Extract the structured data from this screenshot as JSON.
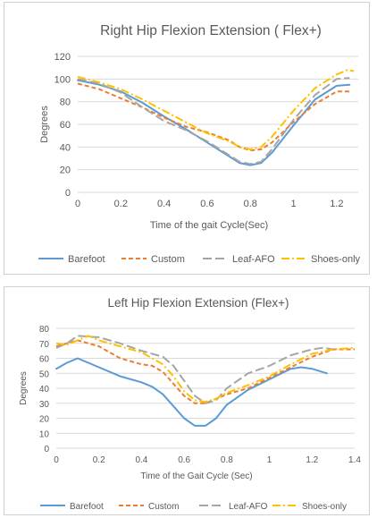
{
  "chart_data": [
    {
      "type": "line",
      "title": "Right Hip Flexion Extension ( Flex+)",
      "xlabel": "Time of the gait Cycle(Sec)",
      "ylabel": "Degrees",
      "xlim": [
        0,
        1.3
      ],
      "ylim": [
        0,
        120
      ],
      "xticks": [
        "0",
        "0.2",
        "0.4",
        "0.6",
        "0.8",
        "1",
        "1.2"
      ],
      "yticks": [
        "0",
        "20",
        "40",
        "60",
        "80",
        "100",
        "120"
      ],
      "grid": "horizontal",
      "legend": "bottom",
      "series": [
        {
          "name": "Barefoot",
          "color": "#5b9bd5",
          "dash": "solid",
          "points": [
            [
              0,
              99
            ],
            [
              0.1,
              95
            ],
            [
              0.2,
              89
            ],
            [
              0.3,
              79
            ],
            [
              0.4,
              67
            ],
            [
              0.5,
              56
            ],
            [
              0.6,
              44
            ],
            [
              0.7,
              32
            ],
            [
              0.75,
              26
            ],
            [
              0.8,
              24
            ],
            [
              0.85,
              26
            ],
            [
              0.9,
              35
            ],
            [
              1.0,
              59
            ],
            [
              1.1,
              82
            ],
            [
              1.2,
              94
            ],
            [
              1.26,
              95
            ]
          ]
        },
        {
          "name": "Custom",
          "color": "#ed7d31",
          "dash": "dash",
          "points": [
            [
              0,
              96
            ],
            [
              0.1,
              91
            ],
            [
              0.2,
              83
            ],
            [
              0.3,
              75
            ],
            [
              0.4,
              66
            ],
            [
              0.5,
              58
            ],
            [
              0.6,
              53
            ],
            [
              0.7,
              46
            ],
            [
              0.75,
              40
            ],
            [
              0.8,
              37
            ],
            [
              0.85,
              38
            ],
            [
              0.9,
              44
            ],
            [
              1.0,
              62
            ],
            [
              1.1,
              78
            ],
            [
              1.2,
              89
            ],
            [
              1.26,
              89
            ]
          ]
        },
        {
          "name": "Leaf-AFO",
          "color": "#a5a5a5",
          "dash": "longdash",
          "points": [
            [
              0,
              100
            ],
            [
              0.1,
              96
            ],
            [
              0.2,
              88
            ],
            [
              0.3,
              75
            ],
            [
              0.4,
              63
            ],
            [
              0.5,
              55
            ],
            [
              0.6,
              45
            ],
            [
              0.7,
              33
            ],
            [
              0.75,
              27
            ],
            [
              0.8,
              25
            ],
            [
              0.85,
              27
            ],
            [
              0.9,
              38
            ],
            [
              1.0,
              64
            ],
            [
              1.1,
              86
            ],
            [
              1.2,
              100
            ],
            [
              1.26,
              101
            ]
          ]
        },
        {
          "name": "Shoes-only",
          "color": "#ffc000",
          "dash": "dashdot",
          "points": [
            [
              0,
              102
            ],
            [
              0.1,
              97
            ],
            [
              0.2,
              91
            ],
            [
              0.3,
              82
            ],
            [
              0.4,
              72
            ],
            [
              0.5,
              62
            ],
            [
              0.6,
              52
            ],
            [
              0.7,
              45
            ],
            [
              0.75,
              40
            ],
            [
              0.8,
              38
            ],
            [
              0.85,
              40
            ],
            [
              0.9,
              49
            ],
            [
              1.0,
              72
            ],
            [
              1.1,
              92
            ],
            [
              1.2,
              104
            ],
            [
              1.25,
              108
            ],
            [
              1.28,
              107
            ]
          ]
        }
      ]
    },
    {
      "type": "line",
      "title": "Left Hip Flexion Extension (Flex+)",
      "xlabel": "Time of the Gait Cycle (Sec)",
      "ylabel": "Degrees",
      "xlim": [
        0,
        1.4
      ],
      "ylim": [
        0,
        80
      ],
      "xticks": [
        "0",
        "0.2",
        "0.4",
        "0.6",
        "0.8",
        "1",
        "1.2",
        "1.4"
      ],
      "yticks": [
        "0",
        "10",
        "20",
        "30",
        "40",
        "50",
        "60",
        "70",
        "80"
      ],
      "grid": "horizontal",
      "legend": "bottom",
      "series": [
        {
          "name": "Barefoot",
          "color": "#5b9bd5",
          "dash": "solid",
          "points": [
            [
              0,
              53
            ],
            [
              0.05,
              57
            ],
            [
              0.1,
              60
            ],
            [
              0.2,
              54
            ],
            [
              0.3,
              48
            ],
            [
              0.4,
              44
            ],
            [
              0.45,
              41
            ],
            [
              0.5,
              36
            ],
            [
              0.55,
              28
            ],
            [
              0.6,
              20
            ],
            [
              0.65,
              15
            ],
            [
              0.7,
              15
            ],
            [
              0.75,
              20
            ],
            [
              0.8,
              29
            ],
            [
              0.9,
              39
            ],
            [
              1.0,
              46
            ],
            [
              1.1,
              53
            ],
            [
              1.15,
              54
            ],
            [
              1.2,
              53
            ],
            [
              1.27,
              50
            ]
          ]
        },
        {
          "name": "Custom",
          "color": "#ed7d31",
          "dash": "dash",
          "points": [
            [
              0,
              68
            ],
            [
              0.05,
              70
            ],
            [
              0.1,
              72
            ],
            [
              0.2,
              68
            ],
            [
              0.3,
              60
            ],
            [
              0.4,
              56
            ],
            [
              0.45,
              55
            ],
            [
              0.5,
              51
            ],
            [
              0.55,
              43
            ],
            [
              0.6,
              35
            ],
            [
              0.65,
              30
            ],
            [
              0.7,
              30
            ],
            [
              0.75,
              33
            ],
            [
              0.8,
              36
            ],
            [
              0.9,
              40
            ],
            [
              1.0,
              47
            ],
            [
              1.1,
              54
            ],
            [
              1.2,
              61
            ],
            [
              1.3,
              66
            ],
            [
              1.4,
              66
            ]
          ]
        },
        {
          "name": "Leaf-AFO",
          "color": "#a5a5a5",
          "dash": "longdash",
          "points": [
            [
              0,
              67
            ],
            [
              0.05,
              70
            ],
            [
              0.1,
              75
            ],
            [
              0.2,
              74
            ],
            [
              0.3,
              70
            ],
            [
              0.4,
              65
            ],
            [
              0.5,
              61
            ],
            [
              0.55,
              55
            ],
            [
              0.6,
              45
            ],
            [
              0.65,
              35
            ],
            [
              0.7,
              30
            ],
            [
              0.75,
              32
            ],
            [
              0.8,
              40
            ],
            [
              0.9,
              50
            ],
            [
              1.0,
              55
            ],
            [
              1.1,
              62
            ],
            [
              1.2,
              66
            ],
            [
              1.25,
              67
            ],
            [
              1.3,
              66
            ]
          ]
        },
        {
          "name": "Shoes-only",
          "color": "#ffc000",
          "dash": "dashdot",
          "points": [
            [
              0,
              70
            ],
            [
              0.05,
              69
            ],
            [
              0.1,
              72
            ],
            [
              0.15,
              75
            ],
            [
              0.2,
              72
            ],
            [
              0.3,
              68
            ],
            [
              0.4,
              64
            ],
            [
              0.5,
              56
            ],
            [
              0.55,
              48
            ],
            [
              0.6,
              38
            ],
            [
              0.65,
              32
            ],
            [
              0.7,
              31
            ],
            [
              0.75,
              33
            ],
            [
              0.8,
              37
            ],
            [
              0.9,
              42
            ],
            [
              1.0,
              48
            ],
            [
              1.1,
              56
            ],
            [
              1.2,
              63
            ],
            [
              1.3,
              66
            ],
            [
              1.4,
              67
            ]
          ]
        }
      ]
    }
  ]
}
